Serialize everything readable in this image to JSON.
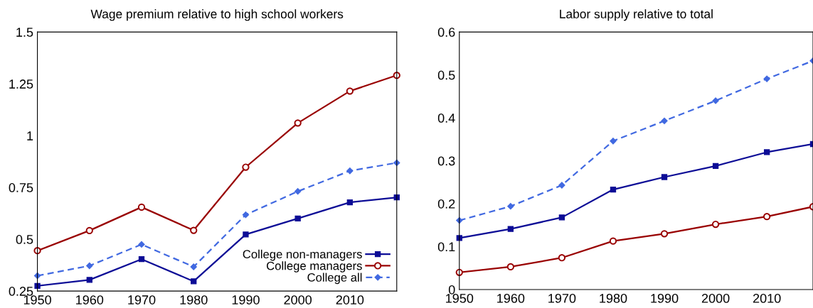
{
  "chart_data": [
    {
      "type": "line",
      "title": "Wage premium relative to high school workers",
      "x": [
        1950,
        1960,
        1970,
        1980,
        1990,
        2000,
        2010,
        2019
      ],
      "xlim": [
        1950,
        2019
      ],
      "xticks": [
        1950,
        1960,
        1970,
        1980,
        1990,
        2000,
        2010
      ],
      "ylim": [
        0.25,
        1.5
      ],
      "yticks": [
        0.25,
        0.5,
        0.75,
        1,
        1.25,
        1.5
      ],
      "grid": false,
      "legend": "bottom right",
      "series": [
        {
          "name": "College non-managers",
          "color": "#0c0c96",
          "marker": "square",
          "line_style": "solid",
          "values": [
            0.275,
            0.304,
            0.404,
            0.297,
            0.523,
            0.6,
            0.678,
            0.702
          ]
        },
        {
          "name": "College managers",
          "color": "#990000",
          "marker": "circle",
          "line_style": "solid",
          "values": [
            0.445,
            0.542,
            0.655,
            0.543,
            0.848,
            1.061,
            1.215,
            1.291
          ]
        },
        {
          "name": "College all",
          "color": "#4169e1",
          "marker": "diamond",
          "line_style": "dashed",
          "values": [
            0.324,
            0.372,
            0.475,
            0.367,
            0.618,
            0.731,
            0.83,
            0.869
          ]
        }
      ]
    },
    {
      "type": "line",
      "title": "Labor supply relative to total",
      "x": [
        1950,
        1960,
        1970,
        1980,
        1990,
        2000,
        2010,
        2019
      ],
      "xlim": [
        1950,
        2019
      ],
      "xticks": [
        1950,
        1960,
        1970,
        1980,
        1990,
        2000,
        2010
      ],
      "ylim": [
        0,
        0.6
      ],
      "yticks": [
        0,
        0.1,
        0.2,
        0.3,
        0.4,
        0.5,
        0.6
      ],
      "grid": false,
      "legend": false,
      "series": [
        {
          "color": "#0c0c96",
          "marker": "square",
          "line_style": "solid",
          "values": [
            0.12,
            0.141,
            0.168,
            0.233,
            0.262,
            0.288,
            0.32,
            0.339
          ]
        },
        {
          "color": "#990000",
          "marker": "circle",
          "line_style": "solid",
          "values": [
            0.04,
            0.053,
            0.074,
            0.113,
            0.13,
            0.152,
            0.17,
            0.193
          ]
        },
        {
          "color": "#4169e1",
          "marker": "diamond",
          "line_style": "dashed",
          "values": [
            0.161,
            0.194,
            0.243,
            0.346,
            0.393,
            0.44,
            0.491,
            0.533
          ]
        }
      ]
    }
  ]
}
